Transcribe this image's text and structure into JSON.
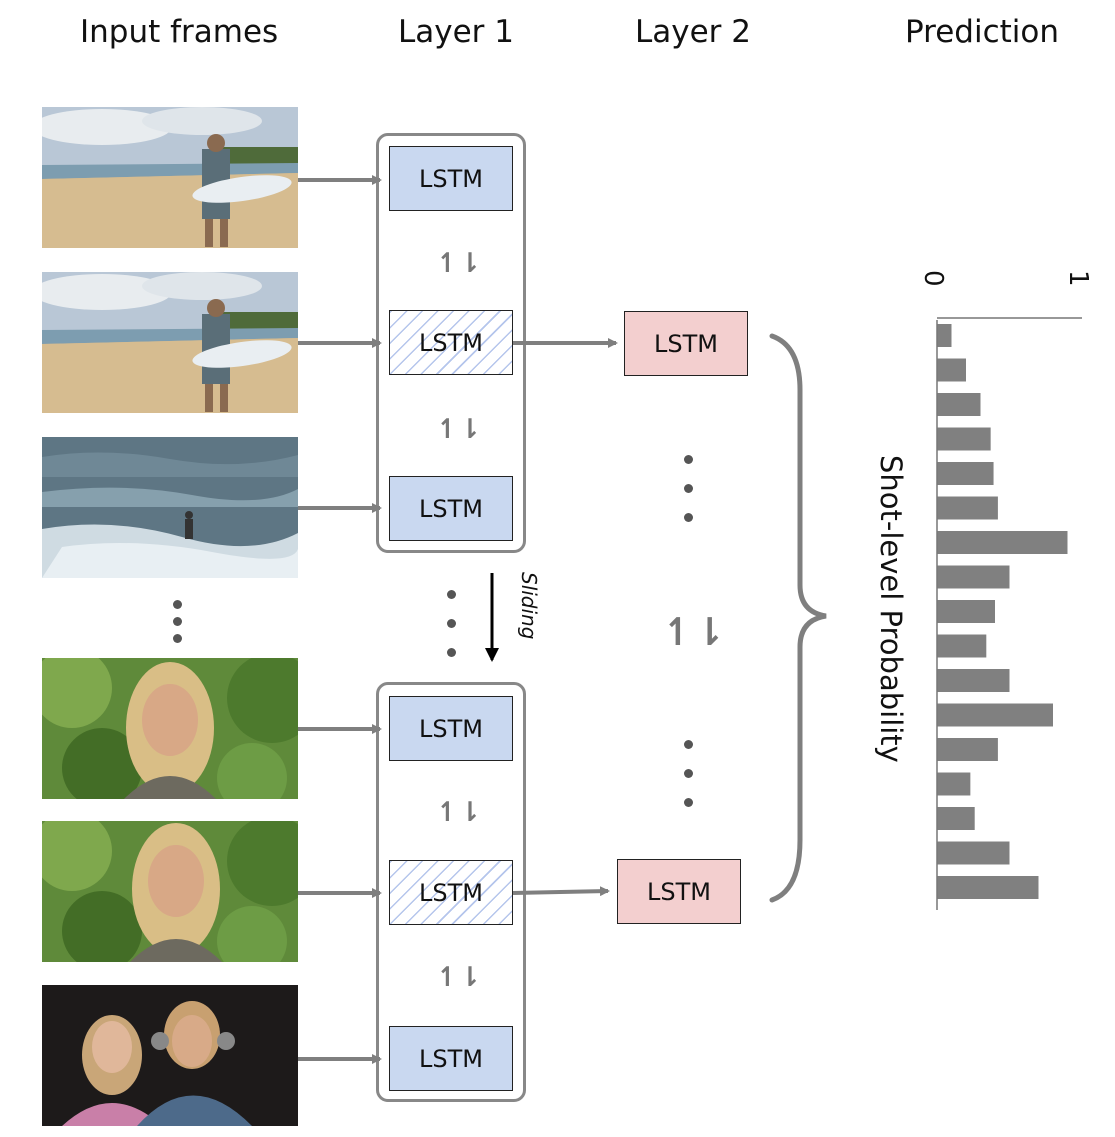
{
  "columns": {
    "input": "Input frames",
    "layer1": "Layer 1",
    "layer2": "Layer 2",
    "prediction": "Prediction"
  },
  "lstm_label": "LSTM",
  "sliding_label": "Sliding",
  "prediction_axis_label": "Shot-level Probability",
  "axis_ticks": {
    "min": "0",
    "max": "1"
  },
  "bidirectional_symbol": "↿⇂",
  "colors": {
    "layer1_lstm": "#c9d8f0",
    "layer2_lstm": "#f3cfcf",
    "arrow": "#7f7f7f",
    "bar": "#808080",
    "group_border": "#888888"
  },
  "chart_data": {
    "type": "bar",
    "orientation": "horizontal",
    "xlim": [
      0,
      1
    ],
    "xlabel": "Shot-level Probability",
    "values": [
      0.1,
      0.2,
      0.3,
      0.37,
      0.39,
      0.42,
      0.9,
      0.5,
      0.4,
      0.34,
      0.5,
      0.8,
      0.42,
      0.23,
      0.26,
      0.5,
      0.7
    ]
  }
}
